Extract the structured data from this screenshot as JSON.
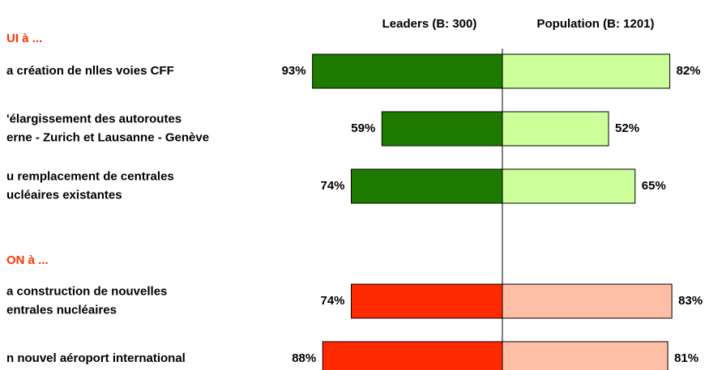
{
  "chart_data": {
    "type": "butterfly",
    "series": [
      {
        "name": "Leaders (B: 300)"
      },
      {
        "name": "Population (B: 1201)"
      }
    ],
    "xlim": [
      0,
      100
    ],
    "groups": [
      {
        "heading": "UI à ...",
        "colors": [
          "#1e7b00",
          "#ccff99"
        ],
        "categories": [
          [
            "a création de nlles voies CFF"
          ],
          [
            "'élargissement des autoroutes",
            "erne - Zurich et Lausanne - Genève"
          ],
          [
            "u remplacement de centrales",
            "ucléaires existantes"
          ]
        ],
        "values": [
          [
            93,
            59,
            74
          ],
          [
            82,
            52,
            65
          ]
        ],
        "value_labels": [
          [
            "93%",
            "59%",
            "74%"
          ],
          [
            "82%",
            "52%",
            "65%"
          ]
        ]
      },
      {
        "heading": "ON à ...",
        "colors": [
          "#ff2a00",
          "#ffbfa6"
        ],
        "categories": [
          [
            "a construction de nouvelles",
            "entrales nucléaires"
          ],
          [
            "n nouvel aéroport international"
          ]
        ],
        "values": [
          [
            74,
            88
          ],
          [
            83,
            81
          ]
        ],
        "value_labels": [
          [
            "74%",
            "88%"
          ],
          [
            "83%",
            "81%"
          ]
        ]
      }
    ]
  }
}
